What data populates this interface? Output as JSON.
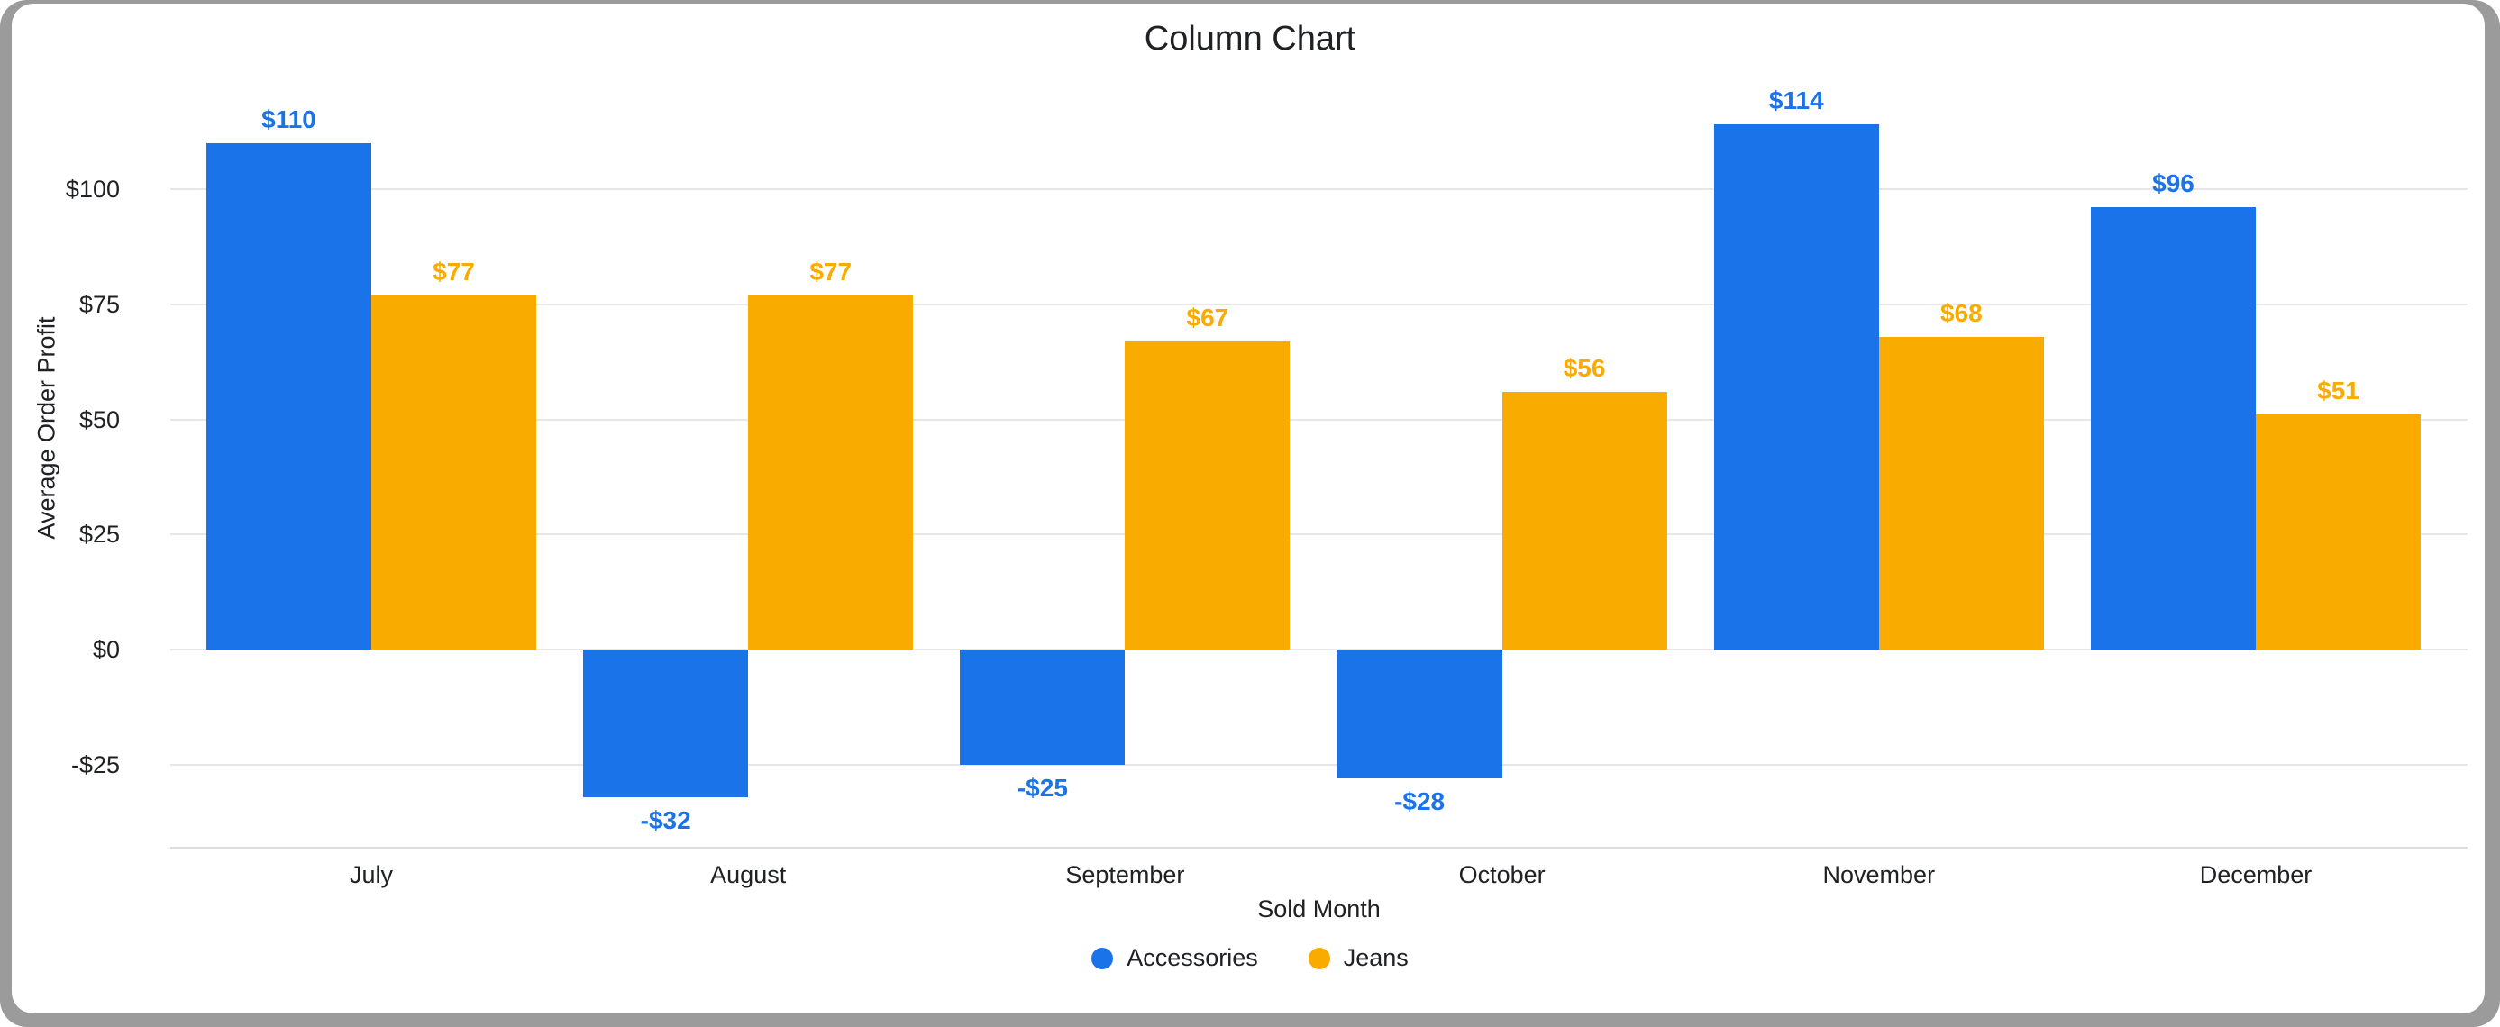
{
  "title": "Column Chart",
  "colors": {
    "accessories_blue": "#1a73e8",
    "jeans_orange": "#f9ab00",
    "text_dark": "#202124",
    "gridline": "#e7e7e7",
    "card_border_gray": "#9b9b9b"
  },
  "legend": [
    {
      "label": "Accessories",
      "color": "#1a73e8"
    },
    {
      "label": "Jeans",
      "color": "#f9ab00"
    }
  ],
  "chart_data": {
    "type": "bar",
    "title": "Column Chart",
    "categories": [
      "July",
      "August",
      "September",
      "October",
      "November",
      "December"
    ],
    "series": [
      {
        "name": "Accessories",
        "color": "#1a73e8",
        "values": [
          110,
          -32,
          -25,
          -28,
          114,
          96
        ],
        "labels": [
          "$110",
          "-$32",
          "-$25",
          "-$28",
          "$114",
          "$96"
        ]
      },
      {
        "name": "Jeans",
        "color": "#f9ab00",
        "values": [
          77,
          77,
          67,
          56,
          68,
          51
        ],
        "labels": [
          "$77",
          "$77",
          "$67",
          "$56",
          "$68",
          "$51"
        ]
      }
    ],
    "xlabel": "Sold Month",
    "ylabel": "Average Order Profit",
    "ylim": [
      -43,
      120
    ],
    "yticks": [
      {
        "value": 100,
        "label": "$100"
      },
      {
        "value": 75,
        "label": "$75"
      },
      {
        "value": 50,
        "label": "$50"
      },
      {
        "value": 25,
        "label": "$25"
      },
      {
        "value": 0,
        "label": "$0"
      },
      {
        "value": -25,
        "label": "-$25"
      }
    ],
    "grid": true,
    "legend_position": "bottom"
  }
}
